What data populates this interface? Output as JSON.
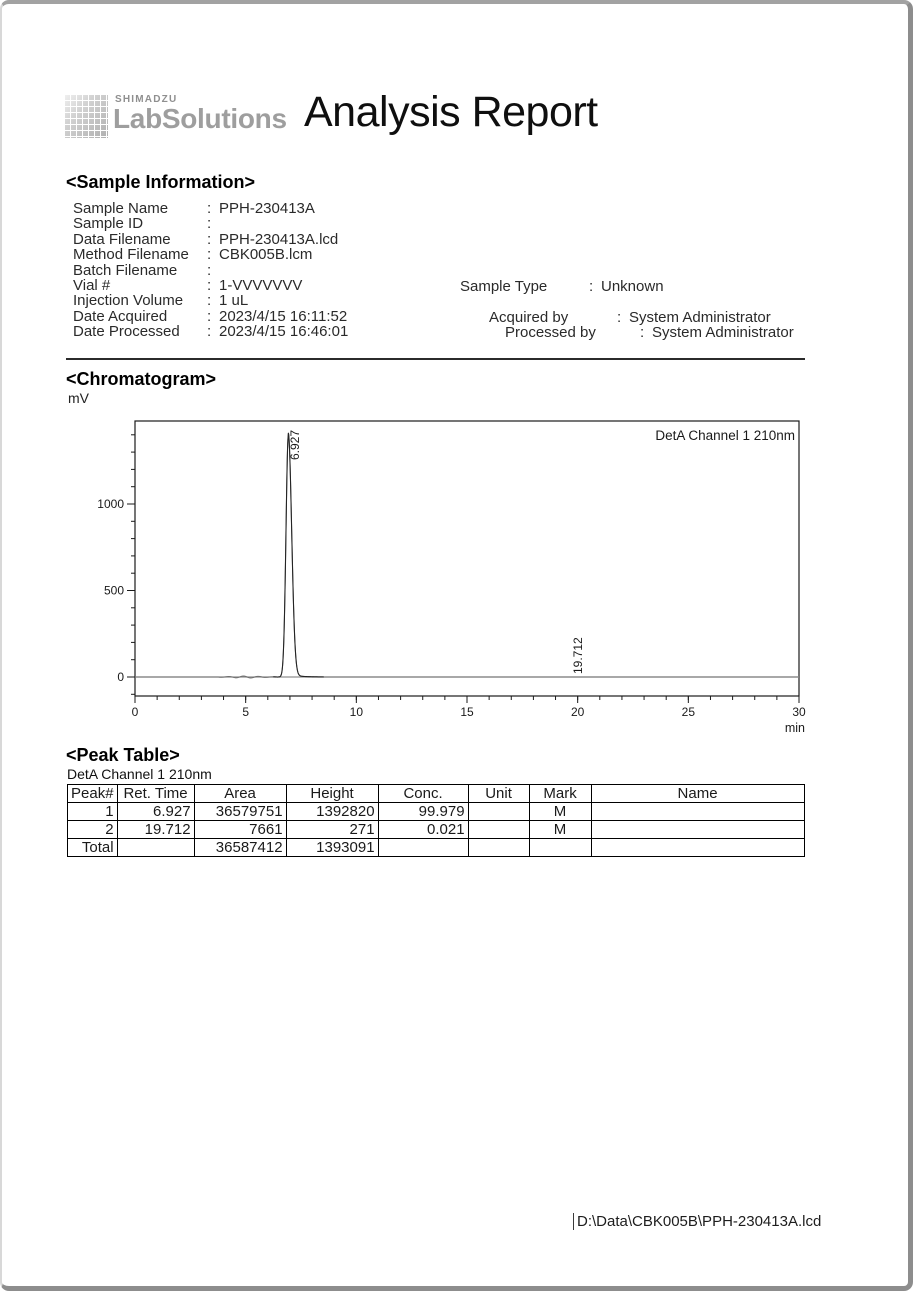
{
  "header": {
    "brand_top": "SHIMADZU",
    "brand_bottom": "LabSolutions",
    "title": "Analysis Report"
  },
  "sample_information": {
    "heading": "<Sample Information>",
    "left_rows": [
      {
        "label": "Sample Name",
        "value": "PPH-230413A"
      },
      {
        "label": "Sample ID",
        "value": ""
      },
      {
        "label": "Data Filename",
        "value": "PPH-230413A.lcd"
      },
      {
        "label": "Method Filename",
        "value": "CBK005B.lcm"
      },
      {
        "label": "Batch Filename",
        "value": ""
      },
      {
        "label": "Vial #",
        "value": "1-VVVVVVV"
      },
      {
        "label": "Injection Volume",
        "value": "1 uL"
      },
      {
        "label": "Date Acquired",
        "value": "2023/4/15 16:11:52"
      },
      {
        "label": "Date Processed",
        "value": "2023/4/15 16:46:01"
      }
    ],
    "right_rows": [
      {
        "label": "Sample Type",
        "value": "Unknown"
      },
      {
        "label": "Acquired by",
        "value": "System Administrator"
      },
      {
        "label": "Processed by",
        "value": "System Administrator"
      }
    ]
  },
  "chromatogram": {
    "heading": "<Chromatogram>",
    "y_axis_unit": "mV",
    "x_axis_unit": "min",
    "detector_label": "DetA Channel 1 210nm"
  },
  "chart_data": {
    "type": "line",
    "title": "",
    "xlabel": "min",
    "ylabel": "mV",
    "xlim": [
      0,
      30
    ],
    "ylim": [
      -110,
      1480
    ],
    "x_major_ticks": [
      0,
      5,
      10,
      15,
      20,
      25,
      30
    ],
    "x_minor_step": 1,
    "y_major_ticks": [
      0,
      500,
      1000
    ],
    "y_minor_step": 100,
    "grid": false,
    "legend_position": "top-right-inside",
    "series": [
      {
        "name": "DetA Channel 1 210nm",
        "baseline_mV": 0,
        "peaks": [
          {
            "ret_time": 6.927,
            "height_mV": 1392.82,
            "label": "6.927"
          },
          {
            "ret_time": 19.712,
            "height_mV": 0.27,
            "label": "19.712"
          }
        ]
      }
    ]
  },
  "peak_table": {
    "heading": "<Peak Table>",
    "subtitle": "DetA Channel 1 210nm",
    "columns": [
      "Peak#",
      "Ret. Time",
      "Area",
      "Height",
      "Conc.",
      "Unit",
      "Mark",
      "Name"
    ],
    "rows": [
      [
        "1",
        "6.927",
        "36579751",
        "1392820",
        "99.979",
        "",
        "M",
        ""
      ],
      [
        "2",
        "19.712",
        "7661",
        "271",
        "0.021",
        "",
        "M",
        ""
      ]
    ],
    "total_row": [
      "Total",
      "",
      "36587412",
      "1393091",
      "",
      "",
      "",
      ""
    ]
  },
  "footer": {
    "file_path": "D:\\Data\\CBK005B\\PPH-230413A.lcd"
  }
}
